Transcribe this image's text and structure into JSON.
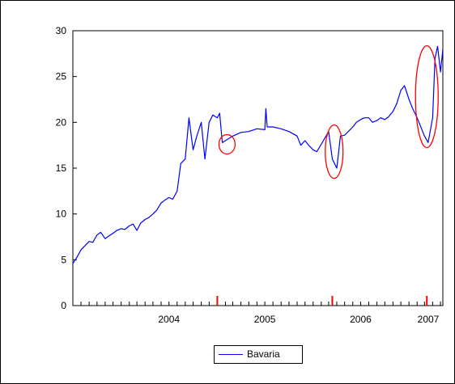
{
  "chart_data": {
    "type": "line",
    "title": "",
    "xlabel": "",
    "ylabel": "",
    "ylim": [
      0,
      30
    ],
    "xlim": [
      "2003-07-01",
      "2007-05-10"
    ],
    "yticks": [
      "0",
      "5",
      "10",
      "15",
      "20",
      "25",
      "30"
    ],
    "yticks_values": [
      0,
      5,
      10,
      15,
      20,
      25,
      30
    ],
    "xticks": [
      "2004",
      "2005",
      "2006",
      "2007"
    ],
    "xticks_dates": [
      "2004-07-01",
      "2005-07-01",
      "2006-07-01",
      "2007-07-01"
    ],
    "grid": false,
    "legend": {
      "placement": "bottom-center",
      "entries": [
        "Bavaria"
      ]
    },
    "series": [
      {
        "name": "Bavaria",
        "color": "#0000ff",
        "x": [
          "2003-07-01",
          "2003-07-15",
          "2003-08-01",
          "2003-08-15",
          "2003-09-01",
          "2003-09-15",
          "2003-10-01",
          "2003-10-15",
          "2003-11-01",
          "2003-11-15",
          "2003-12-01",
          "2003-12-15",
          "2004-01-01",
          "2004-01-15",
          "2004-02-01",
          "2004-02-15",
          "2004-03-01",
          "2004-03-15",
          "2004-04-01",
          "2004-04-15",
          "2004-05-01",
          "2004-05-15",
          "2004-06-01",
          "2004-06-15",
          "2004-07-01",
          "2004-07-15",
          "2004-08-01",
          "2004-08-15",
          "2004-09-01",
          "2004-09-15",
          "2004-10-01",
          "2004-10-15",
          "2004-11-01",
          "2004-11-15",
          "2004-12-01",
          "2004-12-15",
          "2005-01-01",
          "2005-01-10",
          "2005-01-20",
          "2005-02-01",
          "2005-03-01",
          "2005-04-01",
          "2005-05-01",
          "2005-06-01",
          "2005-07-01",
          "2005-07-05",
          "2005-07-10",
          "2005-08-01",
          "2005-09-01",
          "2005-10-01",
          "2005-11-01",
          "2005-11-15",
          "2005-12-01",
          "2005-12-15",
          "2006-01-01",
          "2006-01-15",
          "2006-02-01",
          "2006-02-15",
          "2006-03-01",
          "2006-03-15",
          "2006-04-01",
          "2006-04-15",
          "2006-05-01",
          "2006-05-15",
          "2006-06-01",
          "2006-06-15",
          "2006-07-01",
          "2006-07-15",
          "2006-08-01",
          "2006-08-15",
          "2006-09-01",
          "2006-09-15",
          "2006-10-01",
          "2006-10-15",
          "2006-11-01",
          "2006-11-15",
          "2006-12-01",
          "2006-12-15",
          "2007-01-01",
          "2007-01-15",
          "2007-02-01",
          "2007-02-15",
          "2007-03-01",
          "2007-03-15",
          "2007-04-01",
          "2007-04-10",
          "2007-04-20",
          "2007-05-01",
          "2007-05-10"
        ],
        "y": [
          4.6,
          5.2,
          6.1,
          6.5,
          7.0,
          6.9,
          7.7,
          8.0,
          7.3,
          7.6,
          7.9,
          8.2,
          8.4,
          8.3,
          8.7,
          8.9,
          8.2,
          9.0,
          9.4,
          9.6,
          10.0,
          10.4,
          11.2,
          11.5,
          11.8,
          11.6,
          12.5,
          15.5,
          16.0,
          20.5,
          17.0,
          18.5,
          20.0,
          16.0,
          20.0,
          20.8,
          20.5,
          21.0,
          17.8,
          18.0,
          18.5,
          18.9,
          19.0,
          19.3,
          19.2,
          21.5,
          19.5,
          19.5,
          19.3,
          19.0,
          18.5,
          17.5,
          18.0,
          17.5,
          17.0,
          16.8,
          17.6,
          18.3,
          19.0,
          16.0,
          15.0,
          18.5,
          18.6,
          19.0,
          19.5,
          20.0,
          20.3,
          20.5,
          20.5,
          20.0,
          20.2,
          20.5,
          20.3,
          20.6,
          21.2,
          22.0,
          23.5,
          24.0,
          22.5,
          21.5,
          20.5,
          19.5,
          18.5,
          17.8,
          20.5,
          27.0,
          28.3,
          25.5,
          28.0
        ]
      }
    ],
    "markers": [
      {
        "type": "ellipse",
        "x": "2005-02-07",
        "y": 17.6,
        "color": "#ff0000"
      },
      {
        "type": "ellipse",
        "x": "2006-03-22",
        "y": 16.8,
        "color": "#ff0000"
      },
      {
        "type": "ellipse",
        "x": "2007-03-10",
        "y": 22.8,
        "color": "#ff0000"
      }
    ],
    "spikes": [
      {
        "x": "2005-01-01",
        "color": "#ff0000"
      },
      {
        "x": "2006-03-15",
        "color": "#ff0000"
      },
      {
        "x": "2007-03-10",
        "color": "#ff0000"
      }
    ]
  }
}
